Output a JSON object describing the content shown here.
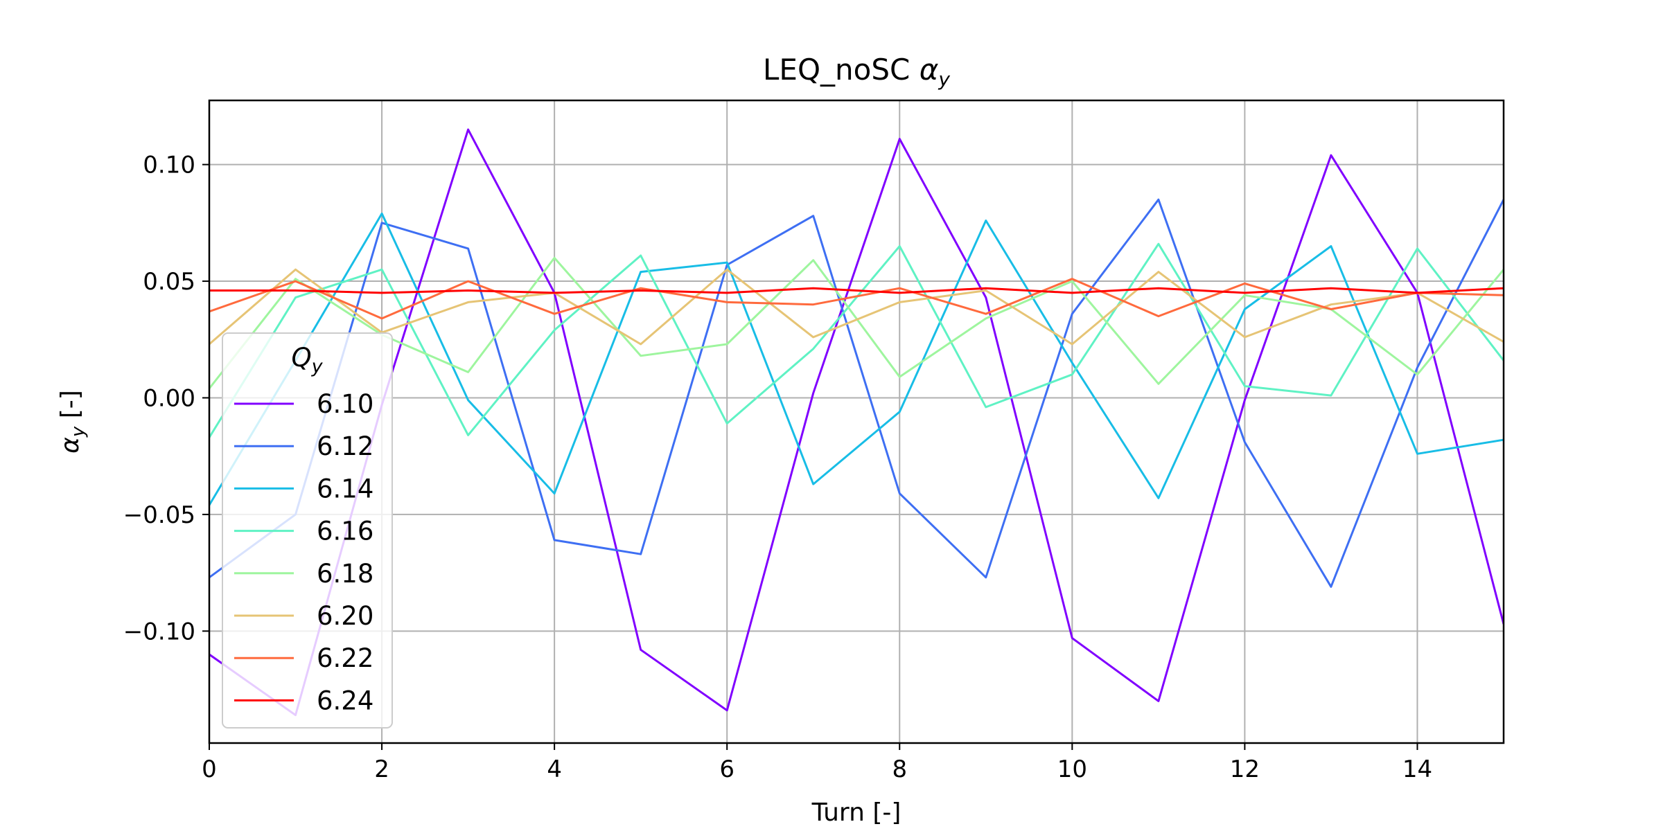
{
  "chart_data": {
    "type": "line",
    "title": "LEQ_noSC",
    "title_symbol": "α",
    "title_symbol_sub": "y",
    "xlabel": "Turn [-]",
    "ylabel_symbol": "α",
    "ylabel_sub": "y",
    "ylabel_unit": "[-]",
    "xlim": [
      0,
      15
    ],
    "ylim": [
      -0.148,
      0.1275
    ],
    "xticks": [
      0,
      2,
      4,
      6,
      8,
      10,
      12,
      14
    ],
    "xtick_labels": [
      "0",
      "2",
      "4",
      "6",
      "8",
      "10",
      "12",
      "14"
    ],
    "yticks": [
      0.1,
      0.05,
      0.0,
      -0.05,
      -0.1
    ],
    "ytick_labels": [
      "0.10",
      "0.05",
      "0.00",
      "−0.05",
      "−0.10"
    ],
    "grid": true,
    "legend": {
      "title_symbol": "Q",
      "title_sub": "y",
      "placement": "lower-left"
    },
    "x": [
      0,
      1,
      2,
      3,
      4,
      5,
      6,
      7,
      8,
      9,
      10,
      11,
      12,
      13,
      14,
      15
    ],
    "series": [
      {
        "name": "6.10",
        "color": "#8000ff",
        "values": [
          -0.11,
          -0.136,
          -0.003,
          0.115,
          0.045,
          -0.108,
          -0.134,
          0.002,
          0.111,
          0.043,
          -0.103,
          -0.13,
          -0.001,
          0.104,
          0.045,
          -0.097
        ]
      },
      {
        "name": "6.12",
        "color": "#3e6ff3",
        "values": [
          -0.077,
          -0.05,
          0.075,
          0.064,
          -0.061,
          -0.067,
          0.057,
          0.078,
          -0.041,
          -0.077,
          0.036,
          0.085,
          -0.019,
          -0.081,
          0.013,
          0.085
        ]
      },
      {
        "name": "6.14",
        "color": "#18bde6",
        "values": [
          -0.046,
          0.016,
          0.079,
          -0.001,
          -0.041,
          0.054,
          0.058,
          -0.037,
          -0.006,
          0.076,
          0.015,
          -0.043,
          0.038,
          0.065,
          -0.024,
          -0.018
        ]
      },
      {
        "name": "6.16",
        "color": "#5ff2c4",
        "values": [
          -0.017,
          0.043,
          0.055,
          -0.016,
          0.029,
          0.061,
          -0.011,
          0.021,
          0.065,
          -0.004,
          0.01,
          0.066,
          0.005,
          0.001,
          0.064,
          0.016
        ]
      },
      {
        "name": "6.18",
        "color": "#9ef59e",
        "values": [
          0.004,
          0.051,
          0.027,
          0.011,
          0.06,
          0.018,
          0.023,
          0.059,
          0.009,
          0.034,
          0.05,
          0.006,
          0.044,
          0.038,
          0.01,
          0.055
        ]
      },
      {
        "name": "6.20",
        "color": "#e6c475",
        "values": [
          0.023,
          0.055,
          0.028,
          0.041,
          0.045,
          0.023,
          0.055,
          0.026,
          0.041,
          0.046,
          0.023,
          0.054,
          0.026,
          0.04,
          0.045,
          0.024
        ]
      },
      {
        "name": "6.22",
        "color": "#ff6a3d",
        "values": [
          0.037,
          0.05,
          0.034,
          0.05,
          0.036,
          0.047,
          0.041,
          0.04,
          0.047,
          0.036,
          0.051,
          0.035,
          0.049,
          0.038,
          0.045,
          0.044
        ]
      },
      {
        "name": "6.24",
        "color": "#ff0000",
        "values": [
          0.046,
          0.046,
          0.045,
          0.046,
          0.045,
          0.046,
          0.045,
          0.047,
          0.045,
          0.047,
          0.045,
          0.047,
          0.045,
          0.047,
          0.045,
          0.047
        ]
      }
    ]
  }
}
